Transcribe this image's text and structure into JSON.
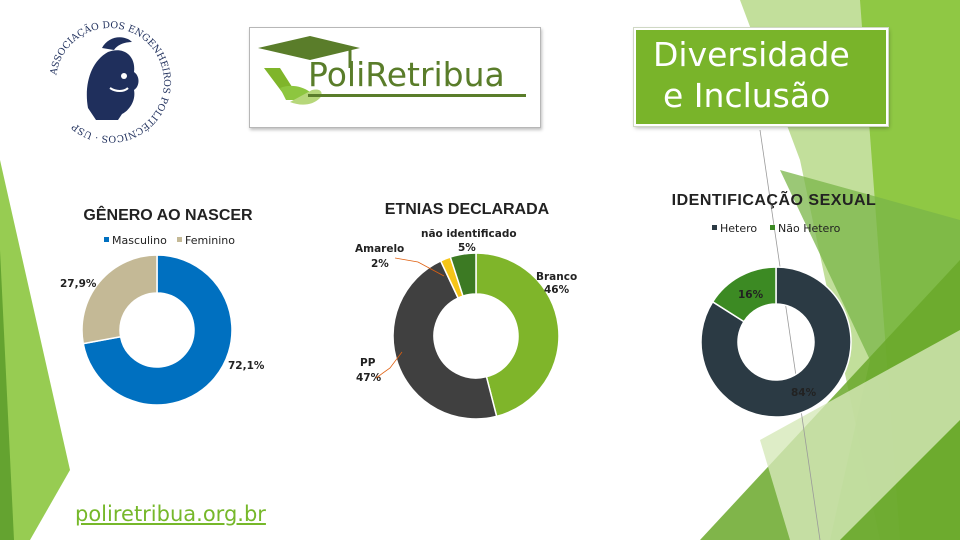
{
  "header": {
    "title_line1": "Diversidade",
    "title_line2": "e Inclusão"
  },
  "logos": {
    "seal_text": "ASSOCIAÇÃO DOS ENGENHEIROS POLITÉCNICOS · USP",
    "brand_text": "PoliRetribua"
  },
  "footer": {
    "link": "poliretribua.org.br"
  },
  "colors": {
    "accent_green": "#79b42a",
    "dark_green": "#3c7a23",
    "blue": "#0070c0",
    "beige": "#c4b996",
    "dark_gray": "#404040",
    "light_green": "#7fb52a",
    "yellow": "#f5c518",
    "slate": "#2b3a44"
  },
  "chart_data": [
    {
      "type": "pie",
      "title": "GÊNERO AO NASCER",
      "legend_position": "top",
      "categories": [
        "Masculino",
        "Feminino"
      ],
      "values": [
        72.1,
        27.9
      ],
      "labels": [
        "72,1%",
        "27,9%"
      ],
      "colors": [
        "#0070c0",
        "#c4b996"
      ]
    },
    {
      "type": "pie",
      "title": "ETNIAS DECLARADA",
      "legend_position": "none",
      "categories": [
        "Branco",
        "PP",
        "Amarelo",
        "não identificado"
      ],
      "values": [
        46,
        47,
        2,
        5
      ],
      "labels": [
        "46%",
        "47%",
        "2%",
        "5%"
      ],
      "colors": [
        "#7fb52a",
        "#404040",
        "#f5c518",
        "#3c7a23"
      ]
    },
    {
      "type": "pie",
      "title": "IDENTIFICAÇÃO SEXUAL",
      "legend_position": "top",
      "categories": [
        "Hetero",
        "Não Hetero"
      ],
      "values": [
        84,
        16
      ],
      "labels": [
        "84%",
        "16%"
      ],
      "colors": [
        "#2b3a44",
        "#3c8a23"
      ]
    }
  ]
}
